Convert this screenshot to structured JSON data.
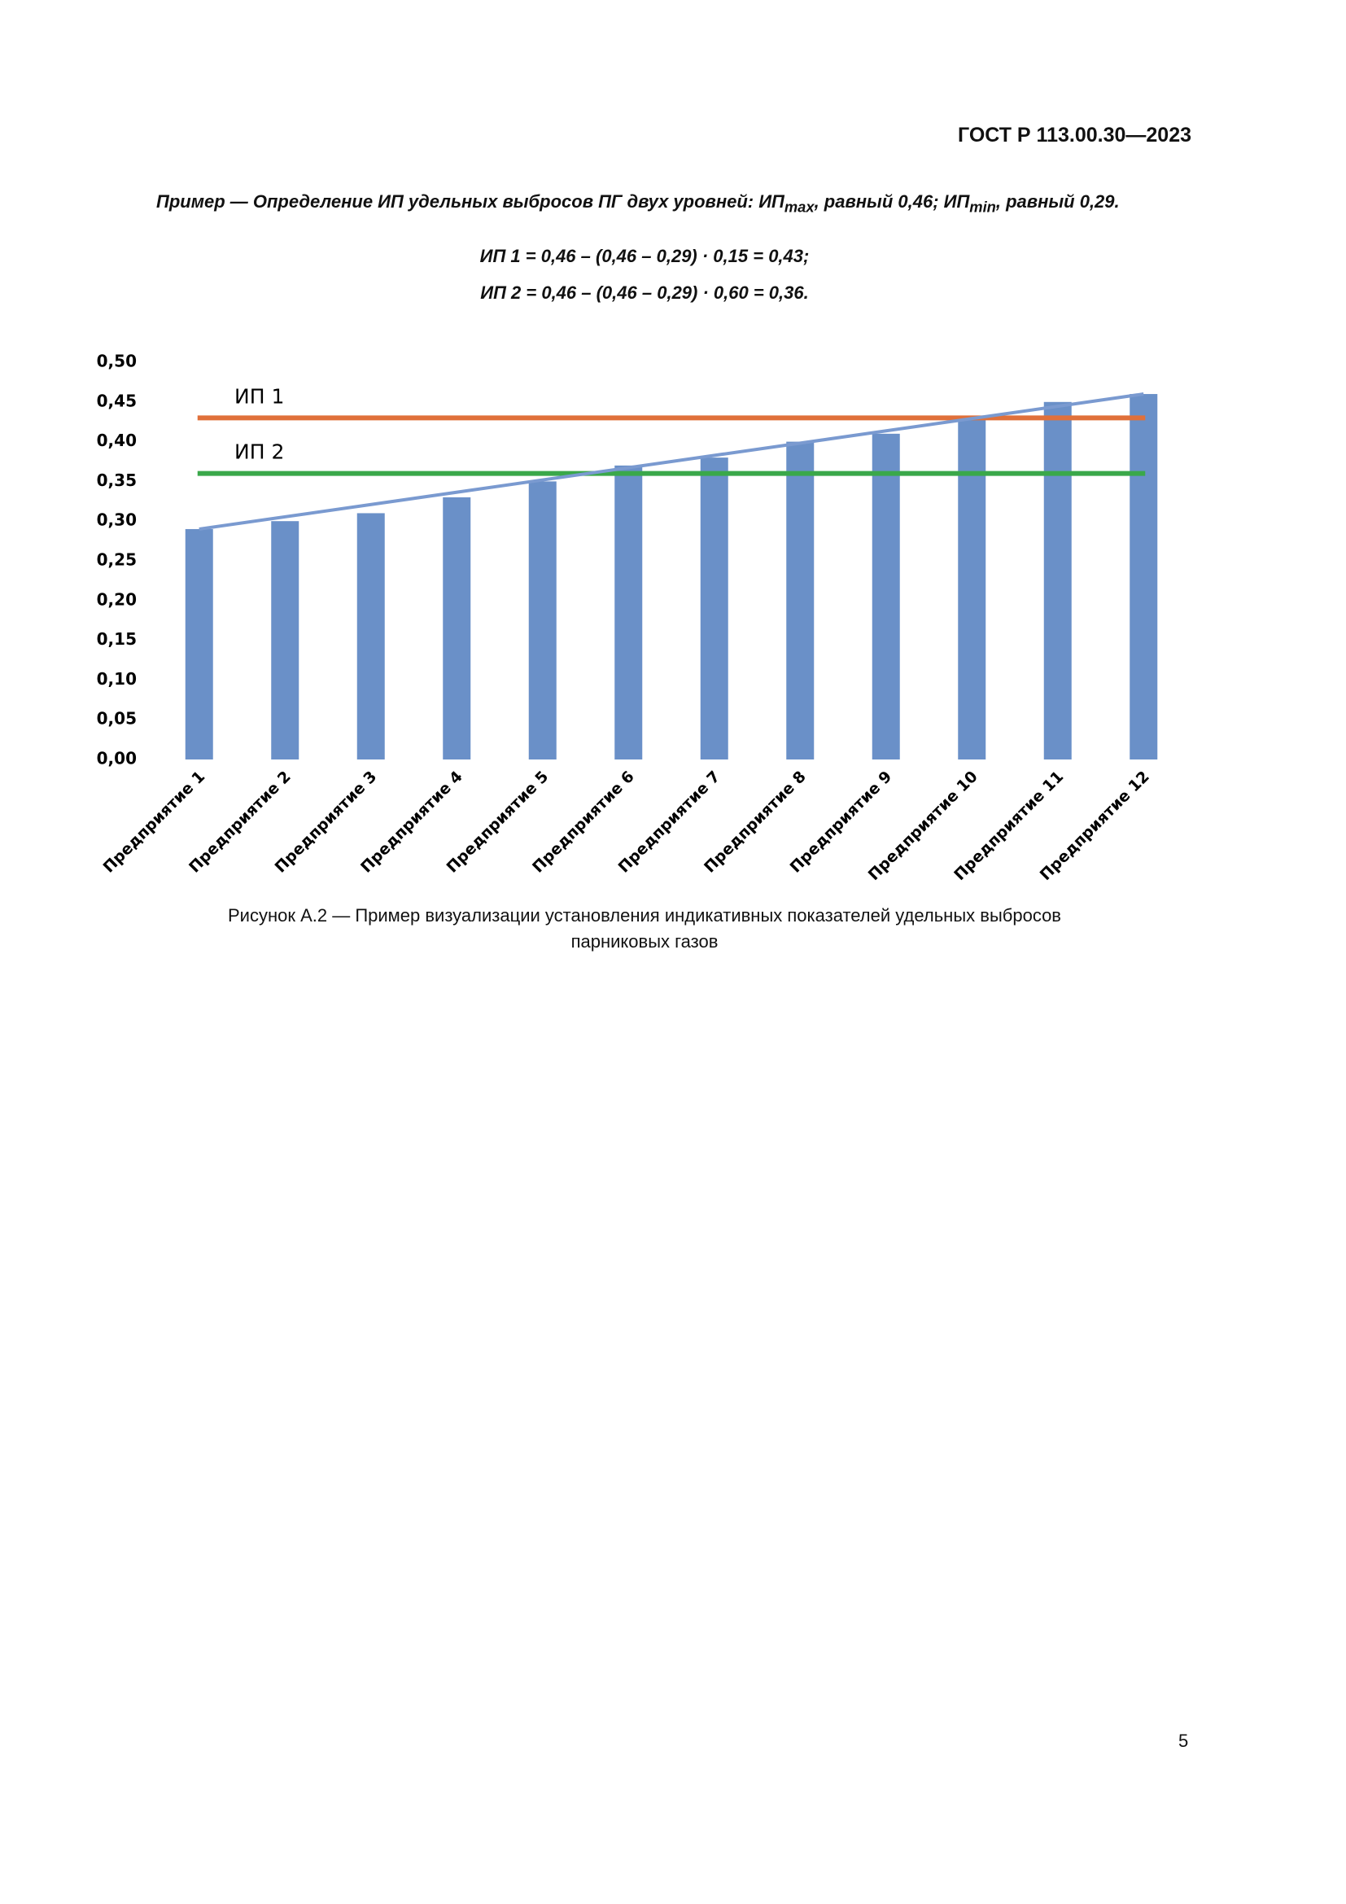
{
  "header": {
    "title": "ГОСТ Р 113.00.30—2023"
  },
  "example": [
    "Пример — Определение ИП удельных выбросов ПГ двух уровней: ИП",
    "max",
    ", равный 0,46; ИП",
    "min",
    ", равный 0,29."
  ],
  "formulas": [
    "ИП 1 = 0,46 – (0,46 – 0,29) · 0,15 = 0,43;",
    "ИП 2 = 0,46 – (0,46 – 0,29) · 0,60 = 0,36."
  ],
  "chart_data": {
    "type": "bar",
    "categories": [
      "Предприятие 1",
      "Предприятие 2",
      "Предприятие 3",
      "Предприятие 4",
      "Предприятие 5",
      "Предприятие 6",
      "Предприятие 7",
      "Предприятие 8",
      "Предприятие 9",
      "Предприятие 10",
      "Предприятие 11",
      "Предприятие 12"
    ],
    "values": [
      0.29,
      0.3,
      0.31,
      0.33,
      0.35,
      0.37,
      0.38,
      0.4,
      0.41,
      0.43,
      0.45,
      0.46
    ],
    "color": "#6a90c8",
    "trend": {
      "values": [
        0.29,
        0.46
      ],
      "color": "#7a9ad0"
    },
    "reference_lines": [
      {
        "label": "ИП 1",
        "value": 0.43,
        "color": "#e0703a"
      },
      {
        "label": "ИП 2",
        "value": 0.36,
        "color": "#3aa84a"
      }
    ],
    "ylim": [
      0,
      0.5
    ],
    "yticks": [
      {
        "value": 0,
        "label": "0,00"
      },
      {
        "value": 0.05,
        "label": "0,05"
      },
      {
        "value": 0.1,
        "label": "0,10"
      },
      {
        "value": 0.15,
        "label": "0,15"
      },
      {
        "value": 0.2,
        "label": "0,20"
      },
      {
        "value": 0.25,
        "label": "0,25"
      },
      {
        "value": 0.3,
        "label": "0,30"
      },
      {
        "value": 0.35,
        "label": "0,35"
      },
      {
        "value": 0.4,
        "label": "0,40"
      },
      {
        "value": 0.45,
        "label": "0,45"
      },
      {
        "value": 0.5,
        "label": "0,50"
      }
    ],
    "grid": false
  },
  "caption": [
    "Рисунок А.2 — Пример визуализации установления индикативных показателей удельных выбросов",
    "парниковых газов"
  ],
  "page_number": "5"
}
